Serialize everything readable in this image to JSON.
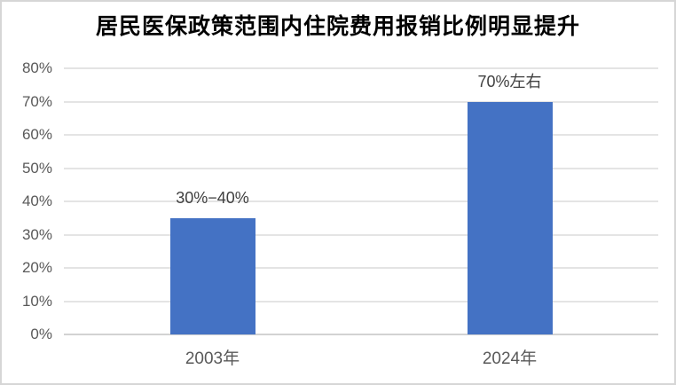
{
  "page": {
    "background": "#FFFFFF",
    "border_color": "#D6D6D6"
  },
  "chart_data": {
    "type": "bar",
    "title": "居民医保政策范围内住院费用报销比例明显提升",
    "categories": [
      "2003年",
      "2024年"
    ],
    "values": [
      35,
      70
    ],
    "bar_labels": [
      "30%−40%",
      "70%左右"
    ],
    "xlabel": "",
    "ylabel": "",
    "ylim": [
      0,
      80
    ],
    "ytick_step": 10,
    "ytick_suffix": "%",
    "ytick_labels": [
      "0%",
      "10%",
      "20%",
      "30%",
      "40%",
      "50%",
      "60%",
      "70%",
      "80%"
    ],
    "grid": true,
    "legend": "none",
    "bar_color": "#4472C4",
    "gridline_color": "#E4E4E4",
    "baseline_color": "#D2D2D2",
    "axis_label_color": "#595959",
    "data_label_color": "#404040",
    "title_color": "#000000"
  }
}
